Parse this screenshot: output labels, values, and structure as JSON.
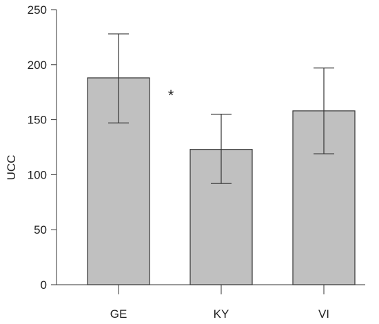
{
  "chart_data": {
    "type": "bar",
    "categories": [
      "GE",
      "KY",
      "VI"
    ],
    "values": [
      188,
      123,
      158
    ],
    "error_low": [
      147,
      92,
      119
    ],
    "error_high": [
      228,
      155,
      197
    ],
    "ylabel": "UCC",
    "ylim": [
      0,
      250
    ],
    "yticks": [
      0,
      50,
      100,
      150,
      200,
      250
    ],
    "grid": false,
    "bar_color": "#c0c0c0",
    "annotation": {
      "text": "*",
      "between": [
        "GE",
        "KY"
      ]
    }
  }
}
